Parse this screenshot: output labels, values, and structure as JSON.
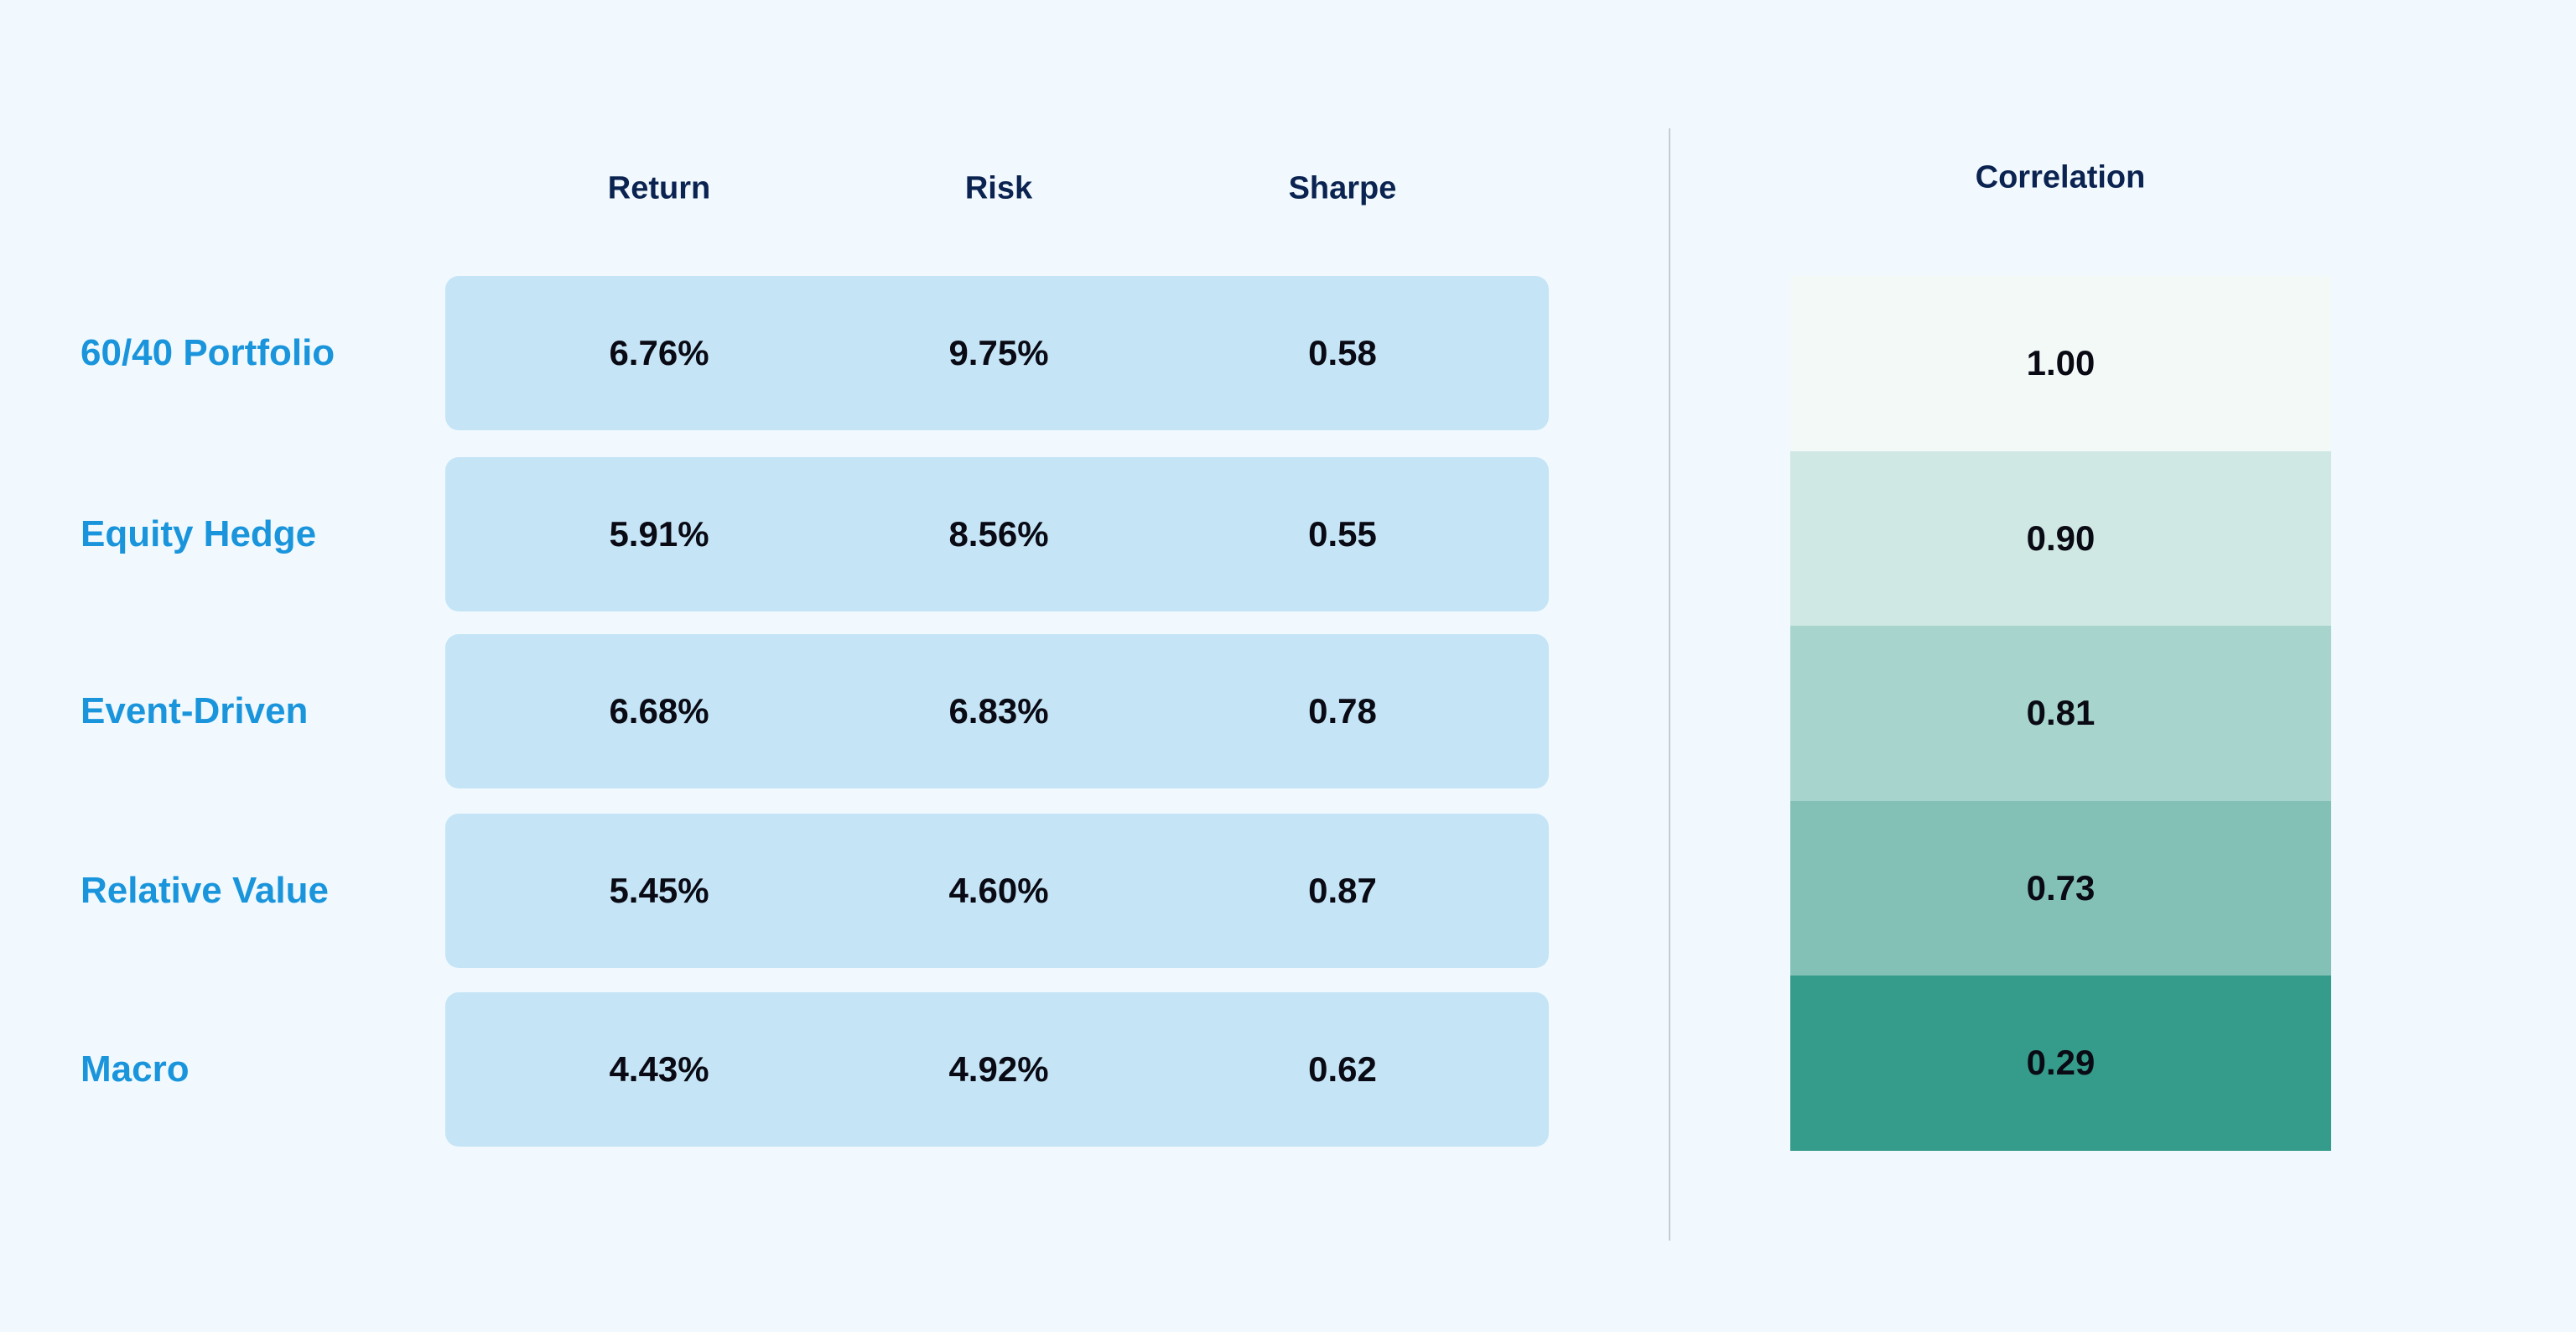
{
  "table": {
    "columns": [
      "Return",
      "Risk",
      "Sharpe"
    ],
    "rows": [
      {
        "name": "60/40 Portfolio",
        "cells": [
          "6.76%",
          "9.75%",
          "0.58"
        ]
      },
      {
        "name": "Equity Hedge",
        "cells": [
          "5.91%",
          "8.56%",
          "0.55"
        ]
      },
      {
        "name": "Event-Driven",
        "cells": [
          "6.68%",
          "6.83%",
          "0.78"
        ]
      },
      {
        "name": "Relative Value",
        "cells": [
          "5.45%",
          "4.60%",
          "0.87"
        ]
      },
      {
        "name": "Macro",
        "cells": [
          "4.43%",
          "4.92%",
          "0.62"
        ]
      }
    ]
  },
  "correlation": {
    "header": "Correlation",
    "values": [
      "1.00",
      "0.90",
      "0.81",
      "0.73",
      "0.29"
    ]
  }
}
